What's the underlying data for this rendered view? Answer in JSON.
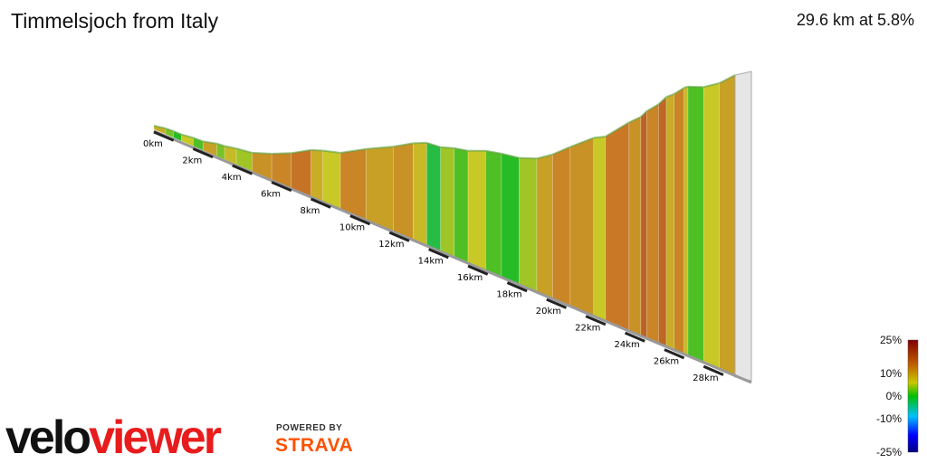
{
  "header": {
    "title": "Timmelsjoch from Italy",
    "summary": "29.6 km at 5.8%"
  },
  "branding": {
    "logo_velo": "velo",
    "logo_viewer": "viewer",
    "powered_by": "POWERED BY",
    "strava": "STRAVA"
  },
  "chart_data": {
    "type": "area",
    "title": "Timmelsjoch from Italy",
    "subtitle": "29.6 km at 5.8%",
    "x_unit": "km",
    "x_ticks": [
      "0km",
      "2km",
      "4km",
      "6km",
      "8km",
      "10km",
      "12km",
      "14km",
      "16km",
      "18km",
      "20km",
      "22km",
      "24km",
      "26km",
      "28km"
    ],
    "x_range": [
      0,
      29.6
    ],
    "segments": [
      {
        "from": 0.0,
        "to": 0.6,
        "gradient": 6
      },
      {
        "from": 0.6,
        "to": 1.0,
        "gradient": 2
      },
      {
        "from": 1.0,
        "to": 1.4,
        "gradient": 0
      },
      {
        "from": 1.4,
        "to": 2.0,
        "gradient": 4
      },
      {
        "from": 2.0,
        "to": 2.5,
        "gradient": 1
      },
      {
        "from": 2.5,
        "to": 3.2,
        "gradient": 7
      },
      {
        "from": 3.2,
        "to": 3.6,
        "gradient": 2
      },
      {
        "from": 3.6,
        "to": 4.2,
        "gradient": 5
      },
      {
        "from": 4.2,
        "to": 5.0,
        "gradient": 3
      },
      {
        "from": 5.0,
        "to": 6.0,
        "gradient": 8
      },
      {
        "from": 6.0,
        "to": 7.0,
        "gradient": 9
      },
      {
        "from": 7.0,
        "to": 8.0,
        "gradient": 11
      },
      {
        "from": 8.0,
        "to": 8.6,
        "gradient": 6
      },
      {
        "from": 8.6,
        "to": 9.5,
        "gradient": 4
      },
      {
        "from": 9.5,
        "to": 10.8,
        "gradient": 9
      },
      {
        "from": 10.8,
        "to": 12.2,
        "gradient": 7
      },
      {
        "from": 12.2,
        "to": 13.2,
        "gradient": 8
      },
      {
        "from": 13.2,
        "to": 13.9,
        "gradient": 5
      },
      {
        "from": 13.9,
        "to": 14.6,
        "gradient": -1
      },
      {
        "from": 14.6,
        "to": 15.3,
        "gradient": 3
      },
      {
        "from": 15.3,
        "to": 16.0,
        "gradient": 1
      },
      {
        "from": 16.0,
        "to": 16.9,
        "gradient": 4
      },
      {
        "from": 16.9,
        "to": 17.7,
        "gradient": 1
      },
      {
        "from": 17.7,
        "to": 18.6,
        "gradient": 0
      },
      {
        "from": 18.6,
        "to": 19.5,
        "gradient": 3
      },
      {
        "from": 19.5,
        "to": 20.3,
        "gradient": 7
      },
      {
        "from": 20.3,
        "to": 21.2,
        "gradient": 9
      },
      {
        "from": 21.2,
        "to": 22.4,
        "gradient": 8
      },
      {
        "from": 22.4,
        "to": 23.0,
        "gradient": 4
      },
      {
        "from": 23.0,
        "to": 24.2,
        "gradient": 10
      },
      {
        "from": 24.2,
        "to": 24.8,
        "gradient": 8
      },
      {
        "from": 24.8,
        "to": 25.1,
        "gradient": 14
      },
      {
        "from": 25.1,
        "to": 25.7,
        "gradient": 9
      },
      {
        "from": 25.7,
        "to": 26.1,
        "gradient": 13
      },
      {
        "from": 26.1,
        "to": 26.5,
        "gradient": 6
      },
      {
        "from": 26.5,
        "to": 27.0,
        "gradient": 9
      },
      {
        "from": 27.0,
        "to": 27.2,
        "gradient": 5
      },
      {
        "from": 27.2,
        "to": 28.0,
        "gradient": 1
      },
      {
        "from": 28.0,
        "to": 28.8,
        "gradient": 4
      },
      {
        "from": 28.8,
        "to": 29.6,
        "gradient": 7
      }
    ],
    "legend": {
      "title": "gradient",
      "ticks": [
        "25%",
        "10%",
        "0%",
        "-10%",
        "-25%"
      ],
      "tick_values": [
        25,
        10,
        0,
        -10,
        -25
      ],
      "range": [
        -25,
        25
      ]
    },
    "colors": {
      "gradient_stops": [
        "#000080",
        "#0000ff",
        "#00c0ff",
        "#00c000",
        "#c8c800",
        "#c06000",
        "#800000"
      ],
      "base_edge": "#9a9a9a",
      "km_marker": "#222222"
    }
  }
}
